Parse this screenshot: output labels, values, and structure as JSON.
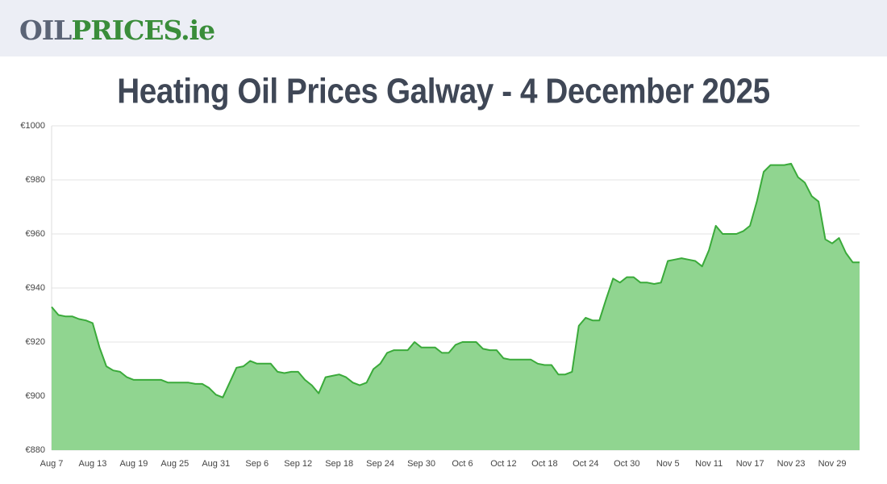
{
  "header": {
    "logo": [
      "OIL",
      "PRICES",
      ".ie"
    ]
  },
  "chart_data": {
    "type": "area",
    "title": "Heating Oil Prices Galway - 4 December 2025",
    "categories": [
      "Aug 7",
      null,
      null,
      null,
      null,
      null,
      "Aug 13",
      null,
      null,
      null,
      null,
      null,
      "Aug 19",
      null,
      null,
      null,
      null,
      null,
      "Aug 25",
      null,
      null,
      null,
      null,
      null,
      "Aug 31",
      null,
      null,
      null,
      null,
      null,
      "Sep 6",
      null,
      null,
      null,
      null,
      null,
      "Sep 12",
      null,
      null,
      null,
      null,
      null,
      "Sep 18",
      null,
      null,
      null,
      null,
      null,
      "Sep 24",
      null,
      null,
      null,
      null,
      null,
      "Sep 30",
      null,
      null,
      null,
      null,
      null,
      "Oct 6",
      null,
      null,
      null,
      null,
      null,
      "Oct 12",
      null,
      null,
      null,
      null,
      null,
      "Oct 18",
      null,
      null,
      null,
      null,
      null,
      "Oct 24",
      null,
      null,
      null,
      null,
      null,
      "Oct 30",
      null,
      null,
      null,
      null,
      null,
      "Nov 5",
      null,
      null,
      null,
      null,
      null,
      "Nov 11",
      null,
      null,
      null,
      null,
      null,
      "Nov 17",
      null,
      null,
      null,
      null,
      null,
      "Nov 23",
      null,
      null,
      null,
      null,
      null,
      "Nov 29",
      null,
      null,
      null,
      null
    ],
    "values": [
      933,
      930,
      929.5,
      929.5,
      928.5,
      928,
      927,
      918,
      911,
      909.5,
      909,
      907,
      906,
      906,
      906,
      906,
      906,
      905,
      905,
      905,
      905,
      904.5,
      904.5,
      903,
      900.5,
      899.5,
      905,
      910.5,
      911,
      913,
      912,
      912,
      912,
      909,
      908.5,
      909,
      909,
      906,
      904,
      901,
      907,
      907.5,
      908,
      907,
      905,
      904,
      905,
      910,
      912,
      916,
      917,
      917,
      917,
      920,
      918,
      918,
      918,
      916,
      916,
      919,
      920,
      920,
      920,
      917.5,
      917,
      917,
      914,
      913.5,
      913.5,
      913.5,
      913.5,
      912,
      911.5,
      911.5,
      908,
      908,
      909,
      926,
      929,
      928,
      928,
      936,
      943.5,
      942,
      944,
      944,
      942,
      942,
      941.5,
      942,
      950,
      950.5,
      951,
      950.5,
      950,
      948,
      954,
      963,
      960,
      960,
      960,
      961,
      963,
      972,
      983,
      985.5,
      985.5,
      985.5,
      986,
      981,
      979,
      974,
      972,
      958,
      956.5,
      958.5,
      953,
      949.5,
      949.5
    ],
    "color": "#3aaa3a",
    "fill": "#90d590",
    "ylim": [
      880,
      1000
    ],
    "yticks": [
      {
        "value": 880,
        "label": "€880"
      },
      {
        "value": 900,
        "label": "€900"
      },
      {
        "value": 920,
        "label": "€920"
      },
      {
        "value": 940,
        "label": "€940"
      },
      {
        "value": 960,
        "label": "€960"
      },
      {
        "value": 980,
        "label": "€980"
      },
      {
        "value": 1000,
        "label": "€1000"
      }
    ],
    "grid": true
  }
}
